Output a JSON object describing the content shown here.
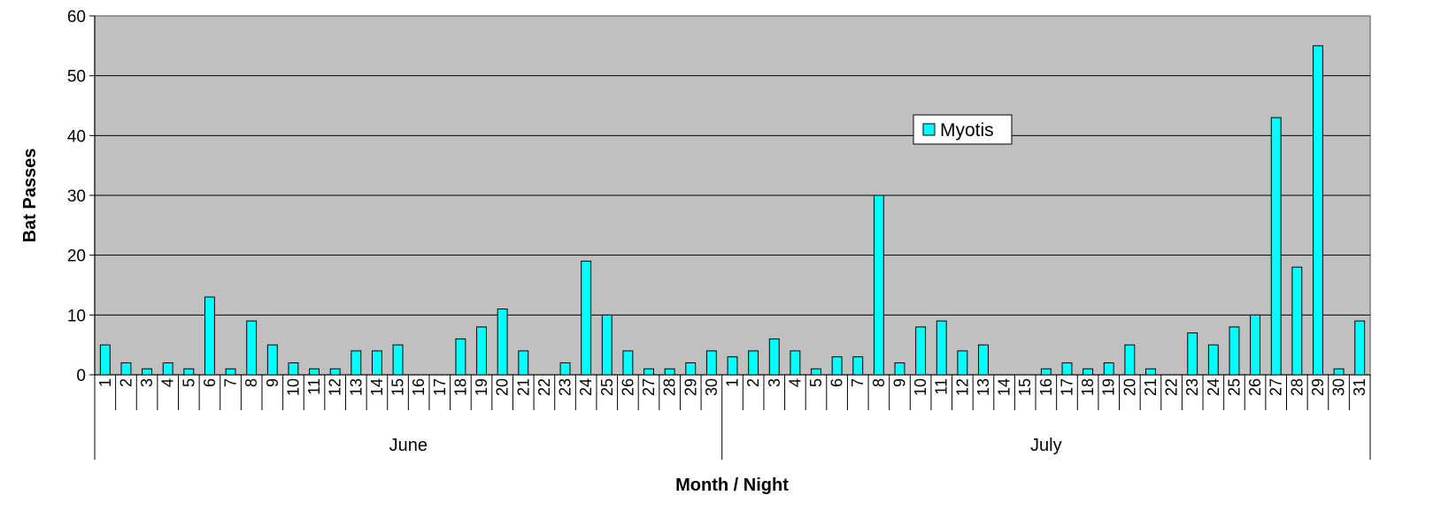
{
  "chart_data": {
    "type": "bar",
    "xlabel": "Month / Night",
    "ylabel": "Bat Passes",
    "ylim": [
      0,
      60
    ],
    "yticks": [
      0,
      10,
      20,
      30,
      40,
      50,
      60
    ],
    "grid": true,
    "legend_position": "center-right",
    "colors": {
      "bar": "#00FFFF",
      "plot_bg": "#C0C0C0",
      "grid": "#000000",
      "border": "#808080"
    },
    "groups": [
      {
        "name": "June",
        "categories": [
          "1",
          "2",
          "3",
          "4",
          "5",
          "6",
          "7",
          "8",
          "9",
          "10",
          "11",
          "12",
          "13",
          "14",
          "15",
          "16",
          "17",
          "18",
          "19",
          "20",
          "21",
          "22",
          "23",
          "24",
          "25",
          "26",
          "27",
          "28",
          "29",
          "30"
        ]
      },
      {
        "name": "July",
        "categories": [
          "1",
          "2",
          "3",
          "4",
          "5",
          "6",
          "7",
          "8",
          "9",
          "10",
          "11",
          "12",
          "13",
          "14",
          "15",
          "16",
          "17",
          "18",
          "19",
          "20",
          "21",
          "22",
          "23",
          "24",
          "25",
          "26",
          "27",
          "28",
          "29",
          "30",
          "31"
        ]
      }
    ],
    "series": [
      {
        "name": "Myotis",
        "values": [
          5,
          2,
          1,
          2,
          1,
          13,
          1,
          9,
          5,
          2,
          1,
          1,
          4,
          4,
          5,
          0,
          0,
          6,
          8,
          11,
          4,
          0,
          2,
          19,
          10,
          4,
          1,
          1,
          2,
          4,
          3,
          4,
          6,
          4,
          1,
          3,
          3,
          30,
          2,
          8,
          9,
          4,
          5,
          0,
          0,
          1,
          2,
          1,
          2,
          5,
          1,
          0,
          7,
          5,
          8,
          10,
          43,
          18,
          55,
          1,
          9
        ]
      }
    ]
  }
}
